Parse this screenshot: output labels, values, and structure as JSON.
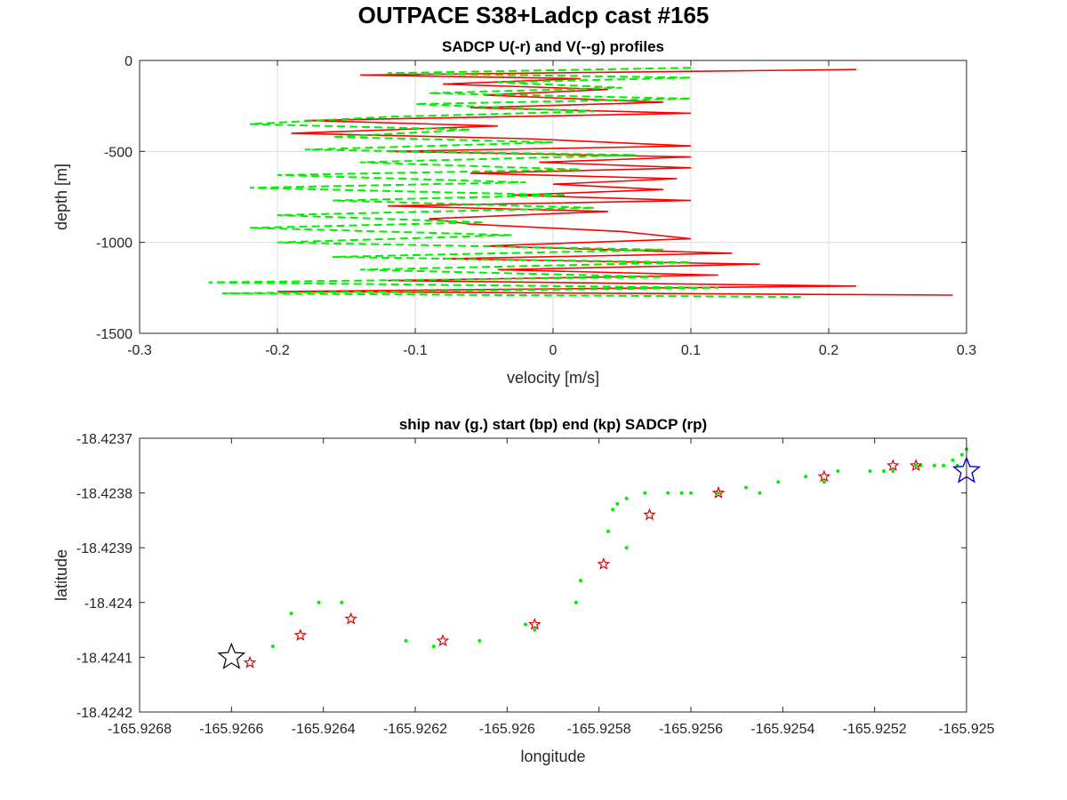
{
  "figure": {
    "title": "OUTPACE S38+Ladcp cast #165"
  },
  "chart_data": [
    {
      "type": "line",
      "title": "SADCP U(-r) and V(--g) profiles",
      "xlabel": "velocity [m/s]",
      "ylabel": "depth [m]",
      "xlim": [
        -0.3,
        0.3
      ],
      "ylim": [
        -1500,
        0
      ],
      "xticks": [
        "-0.3",
        "-0.2",
        "-0.1",
        "0",
        "0.1",
        "0.2",
        "0.3"
      ],
      "yticks": [
        "0",
        "-500",
        "-1000",
        "-1500"
      ],
      "grid": true,
      "series": [
        {
          "color": "#ff0000",
          "style": "solid",
          "depth": [
            -50,
            -80,
            -100,
            -130,
            -160,
            -190,
            -230,
            -260,
            -290,
            -330,
            -360,
            -400,
            -430,
            -470,
            -500,
            -530,
            -560,
            -590,
            -620,
            -650,
            -680,
            -710,
            -740,
            -770,
            -800,
            -830,
            -870,
            -900,
            -940,
            -980,
            -1020,
            -1060,
            -1090,
            -1120,
            -1150,
            -1180,
            -1210,
            -1240,
            -1270,
            -1290
          ],
          "values": [
            0.22,
            -0.14,
            0.02,
            -0.08,
            0.04,
            -0.05,
            0.08,
            -0.06,
            0.1,
            -0.18,
            -0.04,
            -0.19,
            -0.02,
            0.1,
            -0.12,
            0.1,
            -0.01,
            0.1,
            -0.06,
            0.09,
            0.0,
            0.08,
            -0.03,
            0.1,
            -0.12,
            0.04,
            -0.09,
            -0.06,
            0.05,
            0.1,
            -0.05,
            0.13,
            -0.08,
            0.15,
            -0.04,
            0.12,
            -0.12,
            0.22,
            -0.2,
            0.29
          ]
        },
        {
          "color": "#00ee00",
          "style": "dashed",
          "depth": [
            -40,
            -70,
            -95,
            -120,
            -150,
            -180,
            -210,
            -240,
            -280,
            -310,
            -350,
            -380,
            -420,
            -450,
            -490,
            -520,
            -560,
            -600,
            -630,
            -670,
            -700,
            -740,
            -770,
            -810,
            -850,
            -890,
            -920,
            -960,
            -1000,
            -1040,
            -1080,
            -1110,
            -1150,
            -1190,
            -1220,
            -1250,
            -1280,
            -1300
          ],
          "values": [
            0.1,
            -0.12,
            0.1,
            -0.04,
            0.05,
            -0.09,
            0.1,
            -0.1,
            0.03,
            -0.12,
            -0.22,
            -0.06,
            -0.16,
            0.0,
            -0.18,
            0.06,
            -0.14,
            0.02,
            -0.2,
            -0.02,
            -0.22,
            0.01,
            -0.16,
            0.03,
            -0.2,
            -0.05,
            -0.22,
            -0.03,
            -0.2,
            0.08,
            -0.16,
            0.1,
            -0.14,
            0.08,
            -0.25,
            0.12,
            -0.24,
            0.18
          ]
        }
      ]
    },
    {
      "type": "scatter",
      "title": "ship nav (g.) start (bp) end (kp) SADCP (rp)",
      "xlabel": "longitude",
      "ylabel": "latitude",
      "xlim": [
        -165.9268,
        -165.925
      ],
      "ylim": [
        -18.4242,
        -18.4237
      ],
      "xticks": [
        "-165.9268",
        "-165.9266",
        "-165.9264",
        "-165.9262",
        "-165.926",
        "-165.9258",
        "-165.9256",
        "-165.9254",
        "-165.9252",
        "-165.925"
      ],
      "yticks": [
        "-18.4237",
        "-18.4238",
        "-18.4239",
        "-18.424",
        "-18.4241",
        "-18.4242"
      ],
      "grid": false,
      "nav_color": "#00ee00",
      "nav_points": {
        "lon": [
          -165.92647,
          -165.92636,
          -165.92622,
          -165.92606,
          -165.92594,
          -165.92584,
          -165.92578,
          -165.92577,
          -165.92576,
          -165.92574,
          -165.9257,
          -165.92565,
          -165.9256,
          -165.92554,
          -165.92548,
          -165.92541,
          -165.92535,
          -165.92528,
          -165.92521,
          -165.92516,
          -165.92511,
          -165.92507,
          -165.92505,
          -165.92503,
          -165.92501,
          -165.925,
          -165.92651,
          -165.92641,
          -165.92616,
          -165.92596,
          -165.92585,
          -165.92574,
          -165.92562,
          -165.92545,
          -165.92531,
          -165.92518,
          -165.9251,
          -165.92502
        ],
        "lat": [
          -18.42402,
          -18.424,
          -18.42407,
          -18.42407,
          -18.42405,
          -18.42396,
          -18.42387,
          -18.42383,
          -18.42382,
          -18.42381,
          -18.4238,
          -18.4238,
          -18.4238,
          -18.4238,
          -18.42379,
          -18.42378,
          -18.42377,
          -18.42376,
          -18.42376,
          -18.42376,
          -18.42375,
          -18.42375,
          -18.42375,
          -18.42374,
          -18.42373,
          -18.42372,
          -18.42408,
          -18.424,
          -18.42408,
          -18.42404,
          -18.424,
          -18.4239,
          -18.4238,
          -18.4238,
          -18.42378,
          -18.42376,
          -18.42375,
          -18.42375
        ]
      },
      "sadcp_points": {
        "color": "#dd0000",
        "lon": [
          -165.92656,
          -165.92645,
          -165.92634,
          -165.92614,
          -165.92594,
          -165.92579,
          -165.92569,
          -165.92554,
          -165.92531,
          -165.92516,
          -165.92511
        ],
        "lat": [
          -18.42411,
          -18.42406,
          -18.42403,
          -18.42407,
          -18.42404,
          -18.42393,
          -18.42384,
          -18.4238,
          -18.42377,
          -18.42375,
          -18.42375
        ]
      },
      "start_point": {
        "color": "#000000",
        "lon": -165.9266,
        "lat": -18.4241
      },
      "end_point": {
        "color": "#0000cc",
        "lon": -165.925,
        "lat": -18.42376
      }
    }
  ]
}
